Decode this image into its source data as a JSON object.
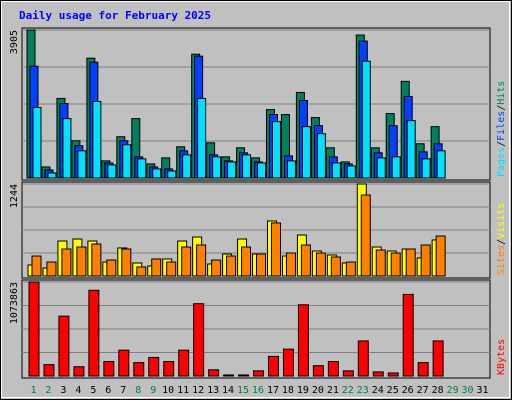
{
  "chart_data": [
    {
      "type": "bar",
      "title": "Daily usage for February 2025",
      "legend_separator": "/",
      "ylim": [
        0,
        3905
      ],
      "yticks": [
        3905
      ],
      "series": [
        {
          "name": "Hits",
          "color": "#00805c",
          "values": [
            3905,
            292,
            2099,
            983,
            3161,
            452,
            1089,
            1567,
            372,
            531,
            823,
            3267,
            930,
            558,
            797,
            531,
            1806,
            1674,
            2258,
            1594,
            797,
            425,
            3772,
            797,
            1700,
            2550,
            903,
            1355,
            null,
            null,
            null
          ]
        },
        {
          "name": "Files",
          "color": "#0040ff",
          "values": [
            2949,
            212,
            1966,
            850,
            3055,
            398,
            983,
            558,
            292,
            239,
            717,
            3214,
            611,
            452,
            664,
            425,
            1674,
            584,
            2045,
            1381,
            558,
            372,
            3613,
            664,
            1381,
            2152,
            691,
            903,
            null,
            null,
            null
          ]
        },
        {
          "name": "Pages",
          "color": "#00e0ff",
          "values": [
            1860,
            133,
            1567,
            717,
            2019,
            345,
            877,
            505,
            239,
            186,
            611,
            2099,
            558,
            425,
            611,
            398,
            1488,
            452,
            1355,
            1169,
            398,
            319,
            3082,
            531,
            558,
            1514,
            505,
            717,
            null,
            null,
            null
          ]
        }
      ]
    },
    {
      "type": "bar",
      "legend_separator": "/",
      "ylim": [
        0,
        1244
      ],
      "yticks": [
        1244
      ],
      "series": [
        {
          "name": "Visits",
          "color": "#ffff00",
          "values": [
            149,
            108,
            473,
            500,
            473,
            189,
            379,
            176,
            135,
            230,
            473,
            527,
            162,
            297,
            500,
            297,
            744,
            270,
            554,
            338,
            284,
            176,
            1244,
            392,
            338,
            365,
            243,
            487,
            null,
            null,
            null
          ]
        },
        {
          "name": "Sites",
          "color": "#ff8000",
          "values": [
            270,
            189,
            365,
            392,
            432,
            216,
            365,
            122,
            230,
            189,
            392,
            419,
            216,
            270,
            392,
            297,
            717,
            311,
            419,
            311,
            257,
            189,
            1095,
            351,
            311,
            365,
            419,
            541,
            null,
            null,
            null
          ]
        }
      ]
    },
    {
      "type": "bar",
      "ylim": [
        0,
        1073863
      ],
      "yticks": [
        1073863
      ],
      "categories": [
        1,
        2,
        3,
        4,
        5,
        6,
        7,
        8,
        9,
        10,
        11,
        12,
        13,
        14,
        15,
        16,
        17,
        18,
        19,
        20,
        21,
        22,
        23,
        24,
        25,
        26,
        27,
        28,
        29,
        30,
        31
      ],
      "weekend": [
        true,
        true,
        false,
        false,
        false,
        false,
        false,
        true,
        true,
        false,
        false,
        false,
        false,
        false,
        true,
        true,
        false,
        false,
        false,
        false,
        false,
        true,
        true,
        false,
        false,
        false,
        false,
        false,
        true,
        true,
        false
      ],
      "weekend_color": "#008040",
      "weekday_color": "#000000",
      "series": [
        {
          "name": "KBytes",
          "color": "#ff0000",
          "values": [
            1073863,
            130000,
            684000,
            106000,
            979000,
            165000,
            295000,
            153000,
            212000,
            165000,
            295000,
            826000,
            71000,
            12000,
            12000,
            59000,
            224000,
            307000,
            814000,
            118000,
            165000,
            59000,
            401000,
            47000,
            35000,
            932000,
            153000,
            401000,
            null,
            null,
            null
          ]
        }
      ]
    }
  ]
}
